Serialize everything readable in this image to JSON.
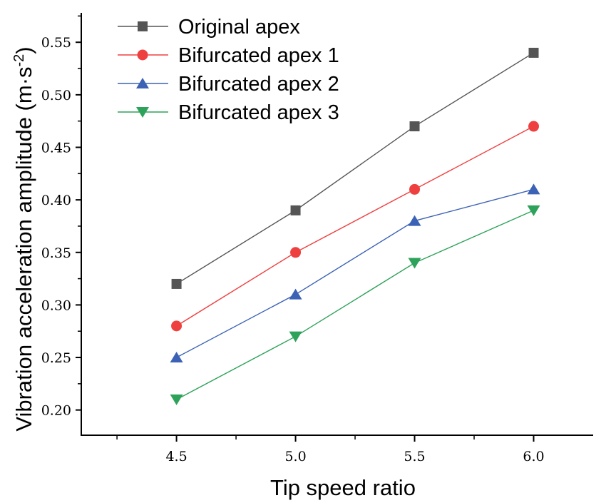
{
  "chart_data": {
    "type": "line",
    "xlabel": "Tip speed ratio",
    "ylabel": "Vibration acceleration amplitude (m·s",
    "ylabel_sup": "-2",
    "ylabel_close": ")",
    "x": [
      4.5,
      5.0,
      5.5,
      6.0
    ],
    "x_tick_labels": [
      "4.5",
      "5.0",
      "5.5",
      "6.0"
    ],
    "y_tick_values": [
      0.2,
      0.25,
      0.3,
      0.35,
      0.4,
      0.45,
      0.5,
      0.55
    ],
    "y_tick_labels": [
      "0.20",
      "0.25",
      "0.30",
      "0.35",
      "0.40",
      "0.45",
      "0.50",
      "0.55"
    ],
    "xlim": [
      4.1,
      6.25
    ],
    "ylim": [
      0.176,
      0.578
    ],
    "grid": false,
    "legend_position": "top-left",
    "series": [
      {
        "name": "Original apex",
        "marker": "square",
        "color": "#555555",
        "values": [
          0.32,
          0.39,
          0.47,
          0.54
        ]
      },
      {
        "name": "Bifurcated apex 1",
        "marker": "circle",
        "color": "#ef4040",
        "values": [
          0.28,
          0.35,
          0.41,
          0.47
        ]
      },
      {
        "name": "Bifurcated apex 2",
        "marker": "triangle-up",
        "color": "#3b62b5",
        "values": [
          0.25,
          0.31,
          0.38,
          0.41
        ]
      },
      {
        "name": "Bifurcated apex 3",
        "marker": "triangle-down",
        "color": "#2ea25a",
        "values": [
          0.21,
          0.27,
          0.34,
          0.39
        ]
      }
    ]
  }
}
